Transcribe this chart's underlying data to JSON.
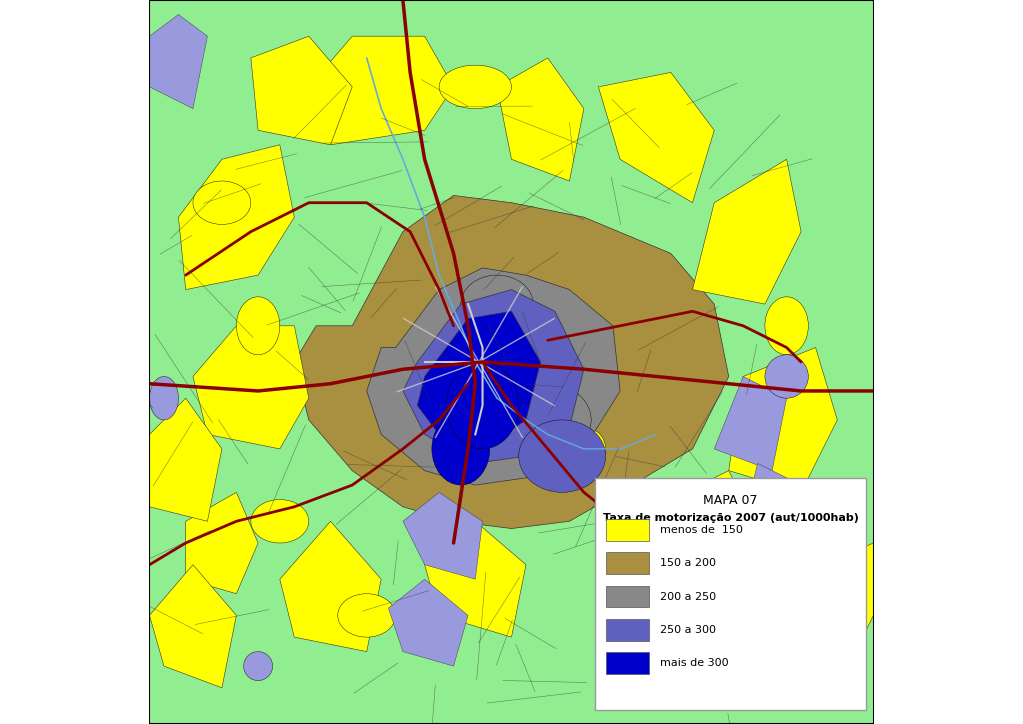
{
  "title": "MAPA 07",
  "legend_title": "Taxa de motorização 2007 (aut/1000hab)",
  "legend_items": [
    {
      "label": "menos de  150",
      "color": "#FFFF00"
    },
    {
      "label": "150 a 200",
      "color": "#A89040"
    },
    {
      "label": "200 a 250",
      "color": "#888888"
    },
    {
      "label": "250 a 300",
      "color": "#6060C0"
    },
    {
      "label": "mais de 300",
      "color": "#0000CC"
    }
  ],
  "map_colors": {
    "light_green": "#90EE90",
    "yellow": "#FFFF00",
    "tan": "#A89040",
    "gray": "#888888",
    "blue_purple": "#6060C0",
    "dark_blue": "#0000CC",
    "dark_red": "#8B0000",
    "water": "#9999DD",
    "river": "#66AADD",
    "metro": "#CCCCCC",
    "district_border": "#333333"
  },
  "figsize": [
    10.23,
    7.24
  ],
  "dpi": 100
}
